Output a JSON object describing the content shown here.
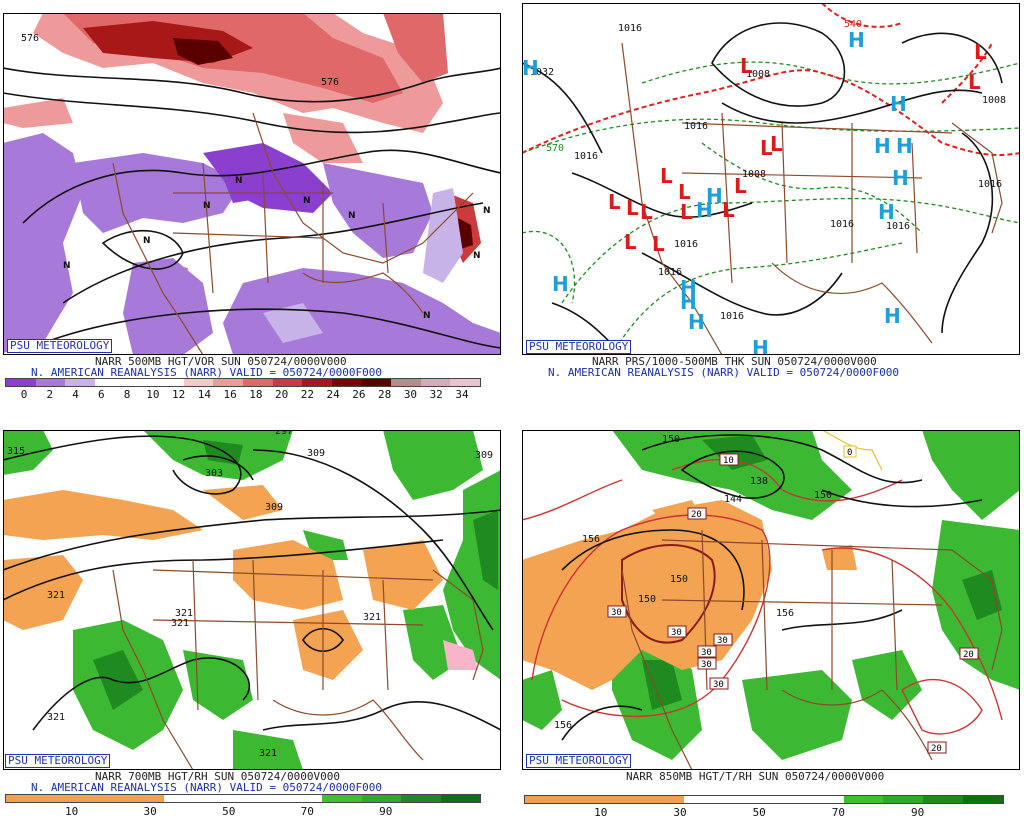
{
  "brand": "PSU METEOROLOGY",
  "panels": [
    {
      "id": "p1",
      "caption1": "NARR 500MB HGT/VOR SUN 050724/0000V000",
      "caption2": "N. AMERICAN REANALYSIS (NARR) VALID = 050724/0000F000",
      "contour_labels": [
        "576",
        "576"
      ],
      "colorbar": {
        "colors": [
          "#8a3fcf",
          "#a77ad9",
          "#c8b3e9",
          "#ffffff",
          "#ffffff",
          "#ffffff",
          "#f6c9c9",
          "#ee9a9a",
          "#e06868",
          "#cc3b3b",
          "#a81818",
          "#7a0606",
          "#5a0000",
          "#b88a8a",
          "#d6a8b8",
          "#e8c4d2"
        ],
        "ticks": [
          "0",
          "2",
          "4",
          "6",
          "8",
          "10",
          "12",
          "14",
          "16",
          "18",
          "20",
          "22",
          "24",
          "26",
          "28",
          "30",
          "32",
          "34"
        ]
      }
    },
    {
      "id": "p2",
      "caption1": "NARR PRS/1000-500MB THK SUN 050724/0000V000",
      "caption2": "N. AMERICAN REANALYSIS (NARR) VALID = 050724/0000F000",
      "contour_labels": [
        "1016",
        "1032",
        "1008",
        "1016",
        "1016",
        "1008",
        "1016",
        "1016",
        "1016",
        "1016",
        "1016",
        "1008",
        "1016",
        "540",
        "570"
      ],
      "highs": "H",
      "lows": "L"
    },
    {
      "id": "p3",
      "caption1": "NARR 700MB HGT/RH SUN 050724/0000V000",
      "caption2": "N. AMERICAN REANALYSIS (NARR) VALID = 050724/0000F000",
      "contour_labels": [
        "315",
        "297",
        "309",
        "309",
        "303",
        "309",
        "321",
        "321",
        "321",
        "321",
        "321",
        "321"
      ],
      "colorbar": {
        "colors": [
          "#f0a050",
          "#f0a050",
          "#f0a050",
          "#f0a050",
          "#ffffff",
          "#ffffff",
          "#ffffff",
          "#ffffff",
          "#40c030",
          "#30a828",
          "#208820",
          "#107010"
        ],
        "ticks": [
          "10",
          "30",
          "50",
          "70",
          "90"
        ]
      }
    },
    {
      "id": "p4",
      "caption1": "NARR 850MB HGT/T/RH SUN 050724/0000V000",
      "colorbar": {
        "colors": [
          "#f0a050",
          "#f0a050",
          "#f0a050",
          "#f0a050",
          "#ffffff",
          "#ffffff",
          "#ffffff",
          "#ffffff",
          "#40c030",
          "#30a828",
          "#208820",
          "#107010"
        ],
        "ticks": [
          "10",
          "30",
          "50",
          "70",
          "90"
        ]
      },
      "contour_labels": [
        "150",
        "144",
        "138",
        "150",
        "156",
        "150",
        "150",
        "156",
        "156"
      ],
      "temp_boxes": [
        "10",
        "20",
        "0",
        "30",
        "30",
        "30",
        "30",
        "30",
        "30",
        "20",
        "20"
      ]
    }
  ]
}
